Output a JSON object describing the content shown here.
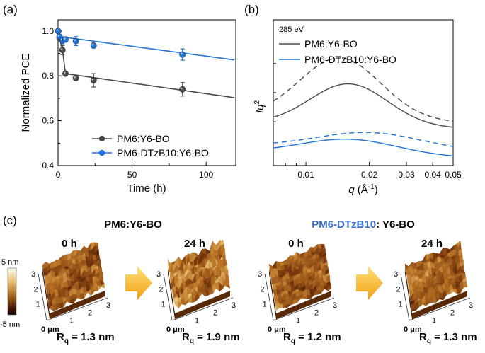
{
  "panel_labels": {
    "a": "(a)",
    "b": "(b)",
    "c": "(c)"
  },
  "colors": {
    "pm6": "#4a4a4a",
    "dtz": "#1f72d6",
    "title_blue": "#3a6fc8",
    "arrow_top": "#ffe27a",
    "arrow_bottom": "#f29e10"
  },
  "chart_data": [
    {
      "type": "scatter",
      "title": "",
      "xlabel": "Time (h)",
      "ylabel": "Normalized PCE",
      "xlim": [
        0,
        120
      ],
      "ylim": [
        0.4,
        1.05
      ],
      "xticks": [
        0,
        50,
        100
      ],
      "yticks": [
        0.4,
        0.6,
        0.8,
        1.0
      ],
      "xtick_labels": [
        "0",
        "50",
        "100"
      ],
      "ytick_labels": [
        "0.4",
        "0.6",
        "0.8",
        "1.0"
      ],
      "series": [
        {
          "name": "PM6:Y6-BO",
          "color": "#4a4a4a",
          "x": [
            0,
            1,
            3,
            5,
            12,
            24,
            84
          ],
          "y": [
            1.0,
            0.968,
            0.915,
            0.81,
            0.79,
            0.78,
            0.74
          ],
          "err": [
            0,
            0.008,
            0.02,
            0.008,
            0.012,
            0.03,
            0.03
          ],
          "fit": {
            "t1": 5,
            "a": 0.81,
            "slope": -0.00094
          }
        },
        {
          "name": "PM6-DTzB10:Y6-BO",
          "color": "#1f72d6",
          "x": [
            0,
            1,
            3,
            5,
            12,
            24,
            84
          ],
          "y": [
            1.0,
            0.975,
            0.958,
            0.962,
            0.955,
            0.935,
            0.895
          ],
          "err": [
            0,
            0.008,
            0.015,
            0.012,
            0.02,
            0.01,
            0.025
          ],
          "fit": {
            "t1": 1,
            "a": 0.975,
            "slope": -0.00088
          }
        }
      ],
      "legend": [
        "PM6:Y6-BO",
        "PM6-DTzB10:Y6-BO"
      ]
    },
    {
      "type": "line",
      "title": "",
      "annotation": "285 eV",
      "xlabel_prefix": "q",
      "xlabel_suffix": " (Å",
      "xlabel_sup": "-1",
      "xlabel_close": ")",
      "ylabel_main": "Iq",
      "ylabel_sup": "2",
      "xscale": "log",
      "xlim": [
        0.007,
        0.05
      ],
      "ylim": [
        0,
        1
      ],
      "xticks": [
        0.01,
        0.02,
        0.03,
        0.04,
        0.05
      ],
      "xtick_labels": [
        "0.01",
        "0.02",
        "0.03",
        "0.04",
        "0.05"
      ],
      "legend": [
        "PM6:Y6-BO",
        "PM6-DTzB10:Y6-BO"
      ],
      "series": [
        {
          "name": "PM6:Y6-BO solid",
          "color": "#4a4a4a",
          "dash": false,
          "base": 0.29,
          "amp": 0.285,
          "peak": 0.016,
          "width": 0.52
        },
        {
          "name": "PM6:Y6-BO dashed",
          "color": "#4a4a4a",
          "dash": true,
          "base": 0.33,
          "amp": 0.42,
          "peak": 0.0145,
          "width": 0.55
        },
        {
          "name": "PM6-DTzB10:Y6-BO solid",
          "color": "#1f72d6",
          "dash": false,
          "base": 0.09,
          "amp": 0.105,
          "peak": 0.016,
          "width": 0.65
        },
        {
          "name": "PM6-DTzB10:Y6-BO dashed",
          "color": "#1f72d6",
          "dash": true,
          "base": 0.135,
          "amp": 0.11,
          "peak": 0.02,
          "width": 0.7
        }
      ]
    }
  ],
  "afm": {
    "title_left": "PM6:Y6-BO",
    "title_right_blue": "PM6-DTzB10",
    "title_right_black": ": Y6-BO",
    "colorbar_top": "5 nm",
    "colorbar_bottom": "-5 nm",
    "unit_label": "0 μm",
    "axis_ticks": [
      "1",
      "2",
      "3"
    ],
    "images": [
      {
        "time": "0 h",
        "rq_label": "R",
        "rq_sub": "q",
        "rq_value": " = 1.3 nm",
        "roughness": 0.55,
        "seed": 11
      },
      {
        "time": "24 h",
        "rq_label": "R",
        "rq_sub": "q",
        "rq_value": " = 1.9 nm",
        "roughness": 1.0,
        "seed": 23
      },
      {
        "time": "0 h",
        "rq_label": "R",
        "rq_sub": "q",
        "rq_value": " = 1.2 nm",
        "roughness": 0.5,
        "seed": 37
      },
      {
        "time": "24 h",
        "rq_label": "R",
        "rq_sub": "q",
        "rq_value": " = 1.3 nm",
        "roughness": 0.55,
        "seed": 51
      }
    ]
  }
}
